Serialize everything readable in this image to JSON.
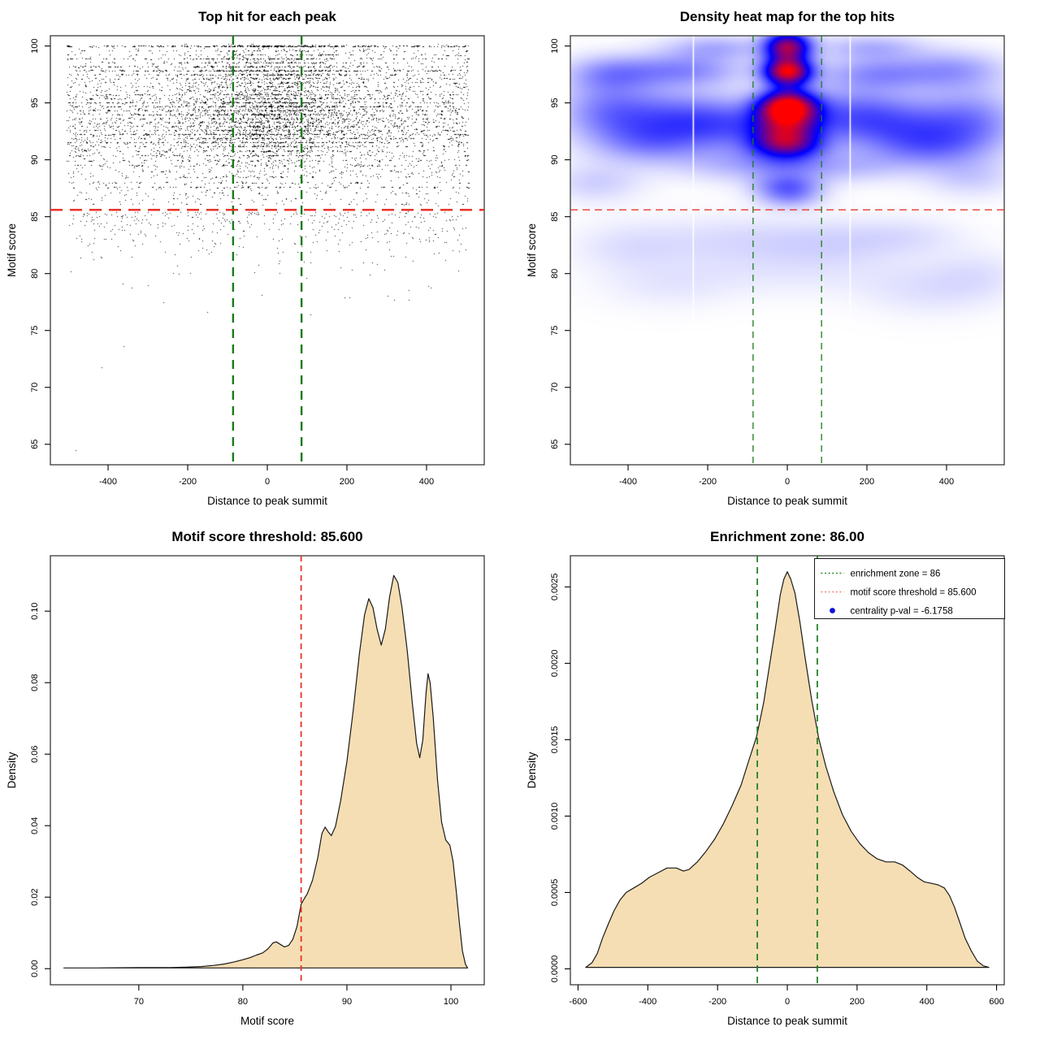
{
  "figure": {
    "background": "#ffffff",
    "grid": "2x2"
  },
  "colors": {
    "threshold_red": "#e8291f",
    "zone_green": "#1b7a1b",
    "legend_red": "#ee7a72",
    "pval_blue": "#1010dc",
    "curve_fill_wheat": "#f5deb3",
    "curve_stroke": "#1a1a1a",
    "point_black": "#000000",
    "box_stroke": "#3a3a3a",
    "heat_gap_white": "#ffffff"
  },
  "chart_data": [
    {
      "type": "scatter",
      "title": "Top hit for each peak",
      "xlabel": "Distance to peak summit",
      "ylabel": "Motif score",
      "xlim": [
        -545,
        545
      ],
      "ylim": [
        63.2,
        100.9
      ],
      "xticks": [
        -400,
        -200,
        0,
        200,
        400
      ],
      "xtick_labels": [
        "-400",
        "-200",
        "0",
        "200",
        "400"
      ],
      "yticks": [
        65,
        70,
        75,
        80,
        85,
        90,
        95,
        100
      ],
      "ytick_labels": [
        "65",
        "70",
        "75",
        "80",
        "85",
        "90",
        "95",
        "100"
      ],
      "hline": {
        "y": 85.6,
        "style": "dashed",
        "width": 2.4,
        "dash": "15 9"
      },
      "vlines": {
        "x": [
          -86,
          86
        ],
        "style": "dashed",
        "width": 2.4,
        "dash": "11 8"
      },
      "points": {
        "seed": 20240917,
        "n_uniform": 4300,
        "n_center": 2300,
        "n_center_bands": 550,
        "n_below": 440,
        "x_uniform_range": [
          -505,
          505
        ],
        "center_x_mean": 8,
        "center_x_sd": 120,
        "center_band_x_sd": 85,
        "band_fraction": 0.5,
        "center_band_fraction": 0.45,
        "y_mean": 93.2,
        "y_sd": 3.3,
        "center_y_mean": 94.6,
        "center_y_sd": 2.7,
        "below_start": 85.45,
        "below_rate": 1.7,
        "below_min": 77.0,
        "bands": [
          [
            100.0,
            9
          ],
          [
            99.6,
            2
          ],
          [
            99.25,
            2
          ],
          [
            98.9,
            4
          ],
          [
            98.55,
            2
          ],
          [
            98.2,
            4
          ],
          [
            97.85,
            7
          ],
          [
            97.5,
            4
          ],
          [
            97.15,
            3
          ],
          [
            96.8,
            2
          ],
          [
            96.45,
            2
          ],
          [
            96.1,
            2
          ],
          [
            95.75,
            3
          ],
          [
            95.4,
            3
          ],
          [
            95.05,
            5
          ],
          [
            94.7,
            5
          ],
          [
            94.35,
            4
          ],
          [
            94.0,
            4
          ],
          [
            93.65,
            3
          ],
          [
            93.3,
            3
          ],
          [
            92.95,
            3
          ],
          [
            92.6,
            4
          ],
          [
            92.25,
            5
          ],
          [
            91.9,
            4
          ],
          [
            91.55,
            4
          ],
          [
            91.2,
            3
          ],
          [
            90.8,
            2
          ],
          [
            90.4,
            2
          ],
          [
            89.95,
            3
          ],
          [
            89.5,
            2
          ],
          [
            89.0,
            2
          ],
          [
            88.5,
            2
          ],
          [
            88.0,
            2
          ],
          [
            87.6,
            3
          ],
          [
            87.1,
            1
          ],
          [
            86.6,
            1
          ],
          [
            86.1,
            1
          ]
        ],
        "outliers": [
          [
            -481,
            64.5
          ],
          [
            -417,
            71.8
          ],
          [
            -362,
            73.6
          ],
          [
            -152,
            76.6
          ],
          [
            108,
            76.4
          ],
          [
            207,
            77.9
          ],
          [
            318,
            77.7
          ],
          [
            -262,
            77.5
          ]
        ]
      }
    },
    {
      "type": "heatmap",
      "title": "Density heat map for the top hits",
      "xlabel": "Distance to peak summit",
      "ylabel": "Motif score",
      "xlim": [
        -545,
        545
      ],
      "ylim": [
        63.2,
        100.9
      ],
      "xticks": [
        -400,
        -200,
        0,
        200,
        400
      ],
      "xtick_labels": [
        "-400",
        "-200",
        "0",
        "200",
        "400"
      ],
      "yticks": [
        65,
        70,
        75,
        80,
        85,
        90,
        95,
        100
      ],
      "ytick_labels": [
        "65",
        "70",
        "75",
        "80",
        "85",
        "90",
        "95",
        "100"
      ],
      "hline": {
        "y": 85.6,
        "style": "dashed",
        "width": 1.3,
        "dash": "9 6"
      },
      "vlines": {
        "x": [
          -86,
          86
        ],
        "style": "dashed",
        "width": 1.3,
        "dash": "8 6"
      },
      "white_gap_lines_x": [
        -236,
        158
      ],
      "colormap": [
        "#ffffff",
        "#0000ff",
        "#ff0000"
      ],
      "density_scale": 0.92,
      "blobs": [
        [
          0,
          94.7,
          1.05,
          52,
          0.95
        ],
        [
          0,
          97.8,
          0.95,
          42,
          0.8
        ],
        [
          0,
          99.95,
          0.85,
          40,
          0.95
        ],
        [
          -5,
          92.0,
          0.55,
          58,
          1.0
        ],
        [
          0,
          96.4,
          0.15,
          38,
          0.85
        ],
        [
          0,
          93.3,
          0.35,
          62,
          0.9
        ],
        [
          0,
          91.2,
          0.32,
          64,
          0.8
        ],
        [
          0,
          89.6,
          0.15,
          70,
          0.9
        ],
        [
          0,
          87.7,
          0.28,
          58,
          0.75
        ],
        [
          5,
          86.6,
          0.15,
          55,
          0.7
        ],
        [
          -150,
          93.1,
          0.28,
          95,
          1.6
        ],
        [
          -300,
          93.6,
          0.27,
          100,
          1.7
        ],
        [
          -455,
          94.3,
          0.24,
          85,
          1.9
        ],
        [
          160,
          93.9,
          0.28,
          95,
          1.7
        ],
        [
          310,
          92.9,
          0.26,
          110,
          1.8
        ],
        [
          470,
          93.4,
          0.22,
          85,
          2.0
        ],
        [
          -260,
          97.9,
          0.24,
          105,
          1.05
        ],
        [
          -445,
          97.6,
          0.2,
          80,
          1.1
        ],
        [
          225,
          97.6,
          0.22,
          100,
          1.05
        ],
        [
          420,
          97.9,
          0.19,
          90,
          1.2
        ],
        [
          -180,
          99.9,
          0.16,
          90,
          0.8
        ],
        [
          210,
          99.9,
          0.16,
          90,
          0.8
        ],
        [
          -350,
          91.4,
          0.18,
          95,
          1.3
        ],
        [
          355,
          91.1,
          0.17,
          95,
          1.3
        ],
        [
          -120,
          89.6,
          0.13,
          110,
          1.1
        ],
        [
          150,
          89.4,
          0.12,
          100,
          1.0
        ],
        [
          -480,
          88.0,
          0.1,
          80,
          1.2
        ],
        [
          460,
          88.5,
          0.1,
          80,
          1.2
        ],
        [
          -140,
          83.0,
          0.07,
          150,
          1.5
        ],
        [
          110,
          82.8,
          0.07,
          120,
          1.4
        ],
        [
          300,
          83.3,
          0.06,
          100,
          1.2
        ],
        [
          -400,
          82.4,
          0.06,
          100,
          1.5
        ],
        [
          355,
          78.6,
          0.06,
          120,
          1.6
        ],
        [
          -300,
          79.0,
          0.045,
          120,
          1.5
        ],
        [
          20,
          80.2,
          0.045,
          200,
          1.5
        ],
        [
          480,
          80.0,
          0.05,
          80,
          1.5
        ]
      ]
    },
    {
      "type": "area",
      "title": "Motif score threshold: 85.600",
      "xlabel": "Motif score",
      "ylabel": "Density",
      "xlim": [
        61.5,
        103.2
      ],
      "ylim": [
        -0.0045,
        0.1155
      ],
      "xticks": [
        70,
        80,
        90,
        100
      ],
      "xtick_labels": [
        "70",
        "80",
        "90",
        "100"
      ],
      "yticks": [
        0,
        0.02,
        0.04,
        0.06,
        0.08,
        0.1
      ],
      "ytick_labels": [
        "0.00",
        "0.02",
        "0.04",
        "0.06",
        "0.08",
        "0.10"
      ],
      "vlines": {
        "x": [
          85.6
        ],
        "color_key": "threshold_red",
        "width": 1.7,
        "dash": "7 5"
      },
      "curve": [
        [
          62.8,
          0.0002
        ],
        [
          66,
          0.0002
        ],
        [
          70,
          0.0003
        ],
        [
          73,
          0.0003
        ],
        [
          74.5,
          0.0004
        ],
        [
          76,
          0.0006
        ],
        [
          77.2,
          0.0009
        ],
        [
          78.2,
          0.0013
        ],
        [
          79.2,
          0.0019
        ],
        [
          80,
          0.0025
        ],
        [
          80.7,
          0.0031
        ],
        [
          81.3,
          0.0038
        ],
        [
          81.9,
          0.0044
        ],
        [
          82.4,
          0.0055
        ],
        [
          82.9,
          0.0072
        ],
        [
          83.2,
          0.0075
        ],
        [
          83.6,
          0.0068
        ],
        [
          84,
          0.0061
        ],
        [
          84.4,
          0.0065
        ],
        [
          84.8,
          0.0082
        ],
        [
          85.2,
          0.0118
        ],
        [
          85.6,
          0.018
        ],
        [
          85.9,
          0.0196
        ],
        [
          86.2,
          0.021
        ],
        [
          86.7,
          0.0248
        ],
        [
          87.2,
          0.031
        ],
        [
          87.6,
          0.0378
        ],
        [
          87.9,
          0.0396
        ],
        [
          88.2,
          0.0383
        ],
        [
          88.5,
          0.0372
        ],
        [
          88.9,
          0.0398
        ],
        [
          89.4,
          0.047
        ],
        [
          90,
          0.058
        ],
        [
          90.6,
          0.072
        ],
        [
          91.2,
          0.088
        ],
        [
          91.7,
          0.099
        ],
        [
          92.1,
          0.1035
        ],
        [
          92.5,
          0.101
        ],
        [
          92.9,
          0.095
        ],
        [
          93.3,
          0.0905
        ],
        [
          93.7,
          0.095
        ],
        [
          94.1,
          0.104
        ],
        [
          94.5,
          0.11
        ],
        [
          94.9,
          0.108
        ],
        [
          95.3,
          0.101
        ],
        [
          95.8,
          0.089
        ],
        [
          96.3,
          0.074
        ],
        [
          96.7,
          0.063
        ],
        [
          97,
          0.059
        ],
        [
          97.3,
          0.064
        ],
        [
          97.6,
          0.077
        ],
        [
          97.8,
          0.0825
        ],
        [
          98,
          0.08
        ],
        [
          98.3,
          0.07
        ],
        [
          98.7,
          0.053
        ],
        [
          99.1,
          0.041
        ],
        [
          99.5,
          0.036
        ],
        [
          99.9,
          0.0345
        ],
        [
          100.2,
          0.03
        ],
        [
          100.5,
          0.022
        ],
        [
          100.8,
          0.013
        ],
        [
          101.1,
          0.005
        ],
        [
          101.4,
          0.0012
        ],
        [
          101.6,
          0.0002
        ]
      ]
    },
    {
      "type": "area",
      "title": "Enrichment zone: 86.00",
      "xlabel": "Distance to peak summit",
      "ylabel": "Density",
      "xlim": [
        -622,
        622
      ],
      "ylim": [
        -0.000104,
        0.002704
      ],
      "xticks": [
        -600,
        -400,
        -200,
        0,
        200,
        400,
        600
      ],
      "xtick_labels": [
        "-600",
        "-400",
        "-200",
        "0",
        "200",
        "400",
        "600"
      ],
      "yticks": [
        0,
        0.0005,
        0.001,
        0.0015,
        0.002,
        0.0025
      ],
      "ytick_labels": [
        "0.0000",
        "0.0005",
        "0.0010",
        "0.0015",
        "0.0020",
        "0.0025"
      ],
      "vlines": {
        "x": [
          -86,
          86
        ],
        "color_key": "zone_green",
        "width": 1.7,
        "dash": "8 6"
      },
      "legend": {
        "items": [
          {
            "marker": "dotted",
            "color_key": "zone_green",
            "label": "enrichment zone = 86"
          },
          {
            "marker": "dotted",
            "color_key": "legend_red",
            "label": "motif score threshold = 85.600"
          },
          {
            "marker": "dot",
            "color_key": "pval_blue",
            "label": "centrality p-val = -6.1758"
          }
        ]
      },
      "curve": [
        [
          -578,
          1e-05
        ],
        [
          -560,
          4e-05
        ],
        [
          -545,
          0.0001
        ],
        [
          -530,
          0.0002
        ],
        [
          -512,
          0.0003
        ],
        [
          -497,
          0.00038
        ],
        [
          -480,
          0.00045
        ],
        [
          -462,
          0.0005
        ],
        [
          -440,
          0.00053
        ],
        [
          -418,
          0.00056
        ],
        [
          -395,
          0.0006
        ],
        [
          -370,
          0.00063
        ],
        [
          -345,
          0.00066
        ],
        [
          -318,
          0.00066
        ],
        [
          -298,
          0.00064
        ],
        [
          -282,
          0.00065
        ],
        [
          -258,
          0.0007
        ],
        [
          -233,
          0.00077
        ],
        [
          -208,
          0.00085
        ],
        [
          -183,
          0.00095
        ],
        [
          -158,
          0.00107
        ],
        [
          -133,
          0.0012
        ],
        [
          -108,
          0.00138
        ],
        [
          -88,
          0.00152
        ],
        [
          -68,
          0.00174
        ],
        [
          -50,
          0.002
        ],
        [
          -35,
          0.00222
        ],
        [
          -20,
          0.00245
        ],
        [
          -10,
          0.00255
        ],
        [
          0,
          0.0026
        ],
        [
          10,
          0.00255
        ],
        [
          22,
          0.00246
        ],
        [
          36,
          0.00227
        ],
        [
          50,
          0.00205
        ],
        [
          70,
          0.00176
        ],
        [
          90,
          0.00151
        ],
        [
          110,
          0.00133
        ],
        [
          133,
          0.00116
        ],
        [
          158,
          0.00101
        ],
        [
          183,
          0.0009
        ],
        [
          208,
          0.00082
        ],
        [
          233,
          0.00076
        ],
        [
          258,
          0.00072
        ],
        [
          283,
          0.0007
        ],
        [
          308,
          0.0007
        ],
        [
          330,
          0.00068
        ],
        [
          352,
          0.00064
        ],
        [
          372,
          0.0006
        ],
        [
          392,
          0.00057
        ],
        [
          412,
          0.00056
        ],
        [
          432,
          0.00055
        ],
        [
          450,
          0.00053
        ],
        [
          465,
          0.00048
        ],
        [
          480,
          0.0004
        ],
        [
          495,
          0.0003
        ],
        [
          510,
          0.0002
        ],
        [
          527,
          0.00012
        ],
        [
          545,
          5e-05
        ],
        [
          562,
          2e-05
        ],
        [
          578,
          1e-05
        ]
      ]
    }
  ]
}
